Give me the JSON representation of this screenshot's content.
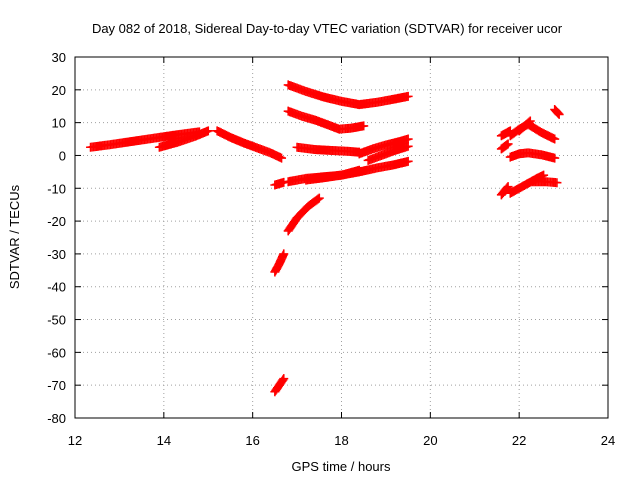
{
  "chart_data": {
    "type": "scatter",
    "title": "Day 082 of 2018, Sidereal Day-to-day VTEC variation (SDTVAR) for receiver ucor",
    "xlabel": "GPS time / hours",
    "ylabel": "SDTVAR / TECUs",
    "xlim": [
      12,
      24
    ],
    "ylim": [
      -80,
      30
    ],
    "xticks": [
      12,
      14,
      16,
      18,
      20,
      22,
      24
    ],
    "yticks": [
      -80,
      -70,
      -60,
      -50,
      -40,
      -30,
      -20,
      -10,
      0,
      10,
      20,
      30
    ],
    "grid": true,
    "marker": "plus",
    "color": "#ff0000",
    "segments": [
      {
        "x": [
          12.35,
          12.8,
          13.3,
          13.8,
          14.3,
          14.8
        ],
        "y": [
          2.5,
          3.3,
          4.3,
          5.3,
          6.3,
          7.2
        ]
      },
      {
        "x": [
          13.9,
          14.3,
          14.7,
          15.0
        ],
        "y": [
          2.5,
          4.0,
          5.8,
          7.5
        ]
      },
      {
        "x": [
          15.2,
          15.5,
          15.8,
          16.1,
          16.4,
          16.65
        ],
        "y": [
          7.5,
          5.5,
          3.8,
          2.3,
          0.8,
          -0.8
        ]
      },
      {
        "x": [
          16.5,
          16.7
        ],
        "y": [
          -9.0,
          -8.2
        ]
      },
      {
        "x": [
          16.8,
          17.2,
          17.6,
          18.0,
          18.4,
          18.8,
          19.2,
          19.5
        ],
        "y": [
          21.5,
          19.5,
          17.8,
          16.5,
          15.5,
          16.2,
          17.2,
          18.0
        ]
      },
      {
        "x": [
          16.8,
          17.1,
          17.4,
          17.7,
          17.95,
          18.2,
          18.5
        ],
        "y": [
          13.5,
          12.0,
          10.8,
          9.3,
          8.0,
          8.3,
          9.0
        ]
      },
      {
        "x": [
          17.0,
          17.4,
          17.8,
          18.1,
          18.4
        ],
        "y": [
          2.5,
          1.8,
          1.5,
          1.3,
          1.0
        ]
      },
      {
        "x": [
          18.4,
          18.7,
          19.0,
          19.3,
          19.5
        ],
        "y": [
          0.5,
          2.0,
          3.2,
          4.2,
          5.0
        ]
      },
      {
        "x": [
          18.6,
          18.9,
          19.2,
          19.5
        ],
        "y": [
          -1.5,
          0.0,
          1.5,
          2.8
        ]
      },
      {
        "x": [
          16.8,
          17.2,
          17.6,
          18.0,
          18.4,
          18.8,
          19.2,
          19.5
        ],
        "y": [
          -8.0,
          -7.0,
          -6.5,
          -6.0,
          -5.0,
          -3.8,
          -2.8,
          -1.8
        ]
      },
      {
        "x": [
          17.2,
          17.6,
          18.0,
          18.4
        ],
        "y": [
          -7.5,
          -6.8,
          -6.0,
          -4.5
        ]
      },
      {
        "x": [
          16.8,
          17.0,
          17.25,
          17.5
        ],
        "y": [
          -23.0,
          -19.0,
          -15.5,
          -13.0
        ]
      },
      {
        "x": [
          16.5,
          16.6,
          16.7
        ],
        "y": [
          -35.5,
          -33.0,
          -30.0
        ]
      },
      {
        "x": [
          16.5,
          16.6,
          16.7
        ],
        "y": [
          -72.0,
          -70.0,
          -68.0
        ]
      },
      {
        "x": [
          21.6,
          21.8
        ],
        "y": [
          6.0,
          7.5
        ]
      },
      {
        "x": [
          21.6,
          21.75
        ],
        "y": [
          2.0,
          3.5
        ]
      },
      {
        "x": [
          21.8,
          22.0,
          22.2,
          22.5,
          22.8
        ],
        "y": [
          6.0,
          8.0,
          9.5,
          7.0,
          5.0
        ]
      },
      {
        "x": [
          22.0,
          22.25
        ],
        "y": [
          7.5,
          10.5
        ]
      },
      {
        "x": [
          21.8,
          22.0,
          22.2,
          22.5,
          22.8
        ],
        "y": [
          -0.5,
          0.5,
          0.8,
          0.2,
          -0.8
        ]
      },
      {
        "x": [
          22.8,
          22.9
        ],
        "y": [
          14.0,
          12.5
        ]
      },
      {
        "x": [
          21.6,
          21.75
        ],
        "y": [
          -12.0,
          -9.5
        ]
      },
      {
        "x": [
          21.8,
          22.0,
          22.2,
          22.4,
          22.55
        ],
        "y": [
          -11.5,
          -10.0,
          -8.5,
          -7.0,
          -6.0
        ]
      },
      {
        "x": [
          22.3,
          22.6,
          22.85
        ],
        "y": [
          -8.0,
          -8.0,
          -8.3
        ]
      }
    ]
  }
}
